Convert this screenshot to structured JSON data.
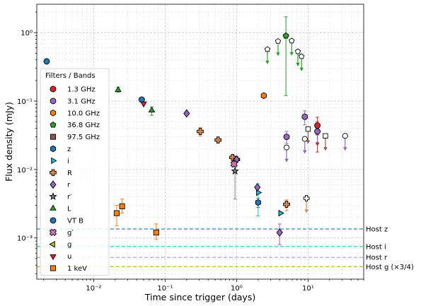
{
  "chart_data": {
    "type": "scatter",
    "xlabel": "Time since trigger (days)",
    "ylabel": "Flux density (mJy)",
    "xscale": "log",
    "yscale": "log",
    "xlim": [
      0.0016,
      60
    ],
    "ylim": [
      0.00025,
      2.6
    ],
    "grid": "major and minor, dashed",
    "x_ticks": [
      {
        "value": 0.01,
        "label": "10⁻²"
      },
      {
        "value": 0.1,
        "label": "10⁻¹"
      },
      {
        "value": 1,
        "label": "10⁰"
      },
      {
        "value": 10,
        "label": "10¹"
      }
    ],
    "y_ticks": [
      {
        "value": 0.001,
        "label": "10⁻³"
      },
      {
        "value": 0.01,
        "label": "10⁻²"
      },
      {
        "value": 0.1,
        "label": "10⁻¹"
      },
      {
        "value": 1,
        "label": "10⁰"
      }
    ],
    "legend": {
      "title": "Filters / Bands",
      "placement": "left",
      "entries": [
        {
          "label": "1.3 GHz",
          "marker": "circle",
          "color": "#d62728"
        },
        {
          "label": "3.1 GHz",
          "marker": "circle",
          "color": "#9467bd"
        },
        {
          "label": "10.0 GHz",
          "marker": "hexagon",
          "color": "#ff7f0e"
        },
        {
          "label": "36.8 GHz",
          "marker": "pentagon",
          "color": "#2ca02c"
        },
        {
          "label": "97.5 GHz",
          "marker": "square",
          "color": "#8c564b"
        },
        {
          "label": "z",
          "marker": "hexagon",
          "color": "#1f77b4"
        },
        {
          "label": "i",
          "marker": "triangle-right",
          "color": "#17becf"
        },
        {
          "label": "R",
          "marker": "plus",
          "color": "#d98a4e"
        },
        {
          "label": "r",
          "marker": "diamond",
          "color": "#9467bd"
        },
        {
          "label": "r′",
          "marker": "star",
          "color": "#7f7f7f"
        },
        {
          "label": "L",
          "marker": "triangle-up",
          "color": "#2ca02c"
        },
        {
          "label": "VT B",
          "marker": "circle",
          "color": "#1f77b4"
        },
        {
          "label": "g′",
          "marker": "x",
          "color": "#e377c2"
        },
        {
          "label": "g",
          "marker": "triangle-left",
          "color": "#bcbd22"
        },
        {
          "label": "u",
          "marker": "triangle-down",
          "color": "#d62728"
        },
        {
          "label": "1 keV",
          "marker": "square",
          "color": "#ff7f0e"
        }
      ]
    },
    "host_lines": [
      {
        "label": "Host z",
        "y": 0.00135,
        "color": "#1f77b4"
      },
      {
        "label": "Host i",
        "y": 0.00075,
        "color": "#17becf"
      },
      {
        "label": "Host r",
        "y": 0.00052,
        "color": "#b19cd9"
      },
      {
        "label": "Host g (×3/4)",
        "y": 0.00038,
        "color": "#bcbd22"
      }
    ],
    "series": [
      {
        "band": "1.3 GHz",
        "marker": "circle",
        "color": "#d62728",
        "points": [
          {
            "x": 13.5,
            "y": 0.044,
            "yerr": [
              0.032,
              0.058
            ]
          },
          {
            "x": 13.5,
            "y": 0.036,
            "yerr": [
              0.018,
              0.05
            ],
            "upper_limit": true
          }
        ]
      },
      {
        "band": "3.1 GHz",
        "marker": "circle",
        "color": "#9467bd",
        "points": [
          {
            "x": 5.0,
            "y": 0.03,
            "yerr": [
              0.024,
              0.036
            ]
          },
          {
            "x": 9.0,
            "y": 0.059,
            "yerr": [
              0.045,
              0.072
            ]
          },
          {
            "x": 13.5,
            "y": 0.036,
            "yerr": [
              0.025,
              0.047
            ]
          },
          {
            "x": 33.0,
            "y": 0.031,
            "upper_limit": true
          },
          {
            "x": 5.0,
            "y": 0.021,
            "upper_limit": true
          },
          {
            "x": 9.0,
            "y": 0.028,
            "upper_limit": true
          }
        ]
      },
      {
        "band": "10.0 GHz",
        "marker": "hexagon",
        "color": "#ff7f0e",
        "points": [
          {
            "x": 2.4,
            "y": 0.12
          }
        ]
      },
      {
        "band": "36.8 GHz",
        "marker": "pentagon",
        "color": "#2ca02c",
        "points": [
          {
            "x": 4.9,
            "y": 0.9,
            "yerr": [
              0.12,
              1.7
            ]
          },
          {
            "x": 2.7,
            "y": 0.57,
            "upper_limit": true
          },
          {
            "x": 3.8,
            "y": 0.75,
            "upper_limit": true
          },
          {
            "x": 5.9,
            "y": 0.76,
            "upper_limit": true
          },
          {
            "x": 7.2,
            "y": 0.53,
            "upper_limit": true
          },
          {
            "x": 8.1,
            "y": 0.45,
            "upper_limit": true
          }
        ]
      },
      {
        "band": "97.5 GHz",
        "marker": "square",
        "color": "#8c564b",
        "points": [
          {
            "x": 10.0,
            "y": 0.039,
            "upper_limit": true
          },
          {
            "x": 17.5,
            "y": 0.031,
            "upper_limit": true
          }
        ]
      },
      {
        "band": "z",
        "marker": "hexagon",
        "color": "#1f77b4",
        "points": [
          {
            "x": 2.0,
            "y": 0.0033,
            "yerr": [
              0.0028,
              0.0038
            ]
          }
        ]
      },
      {
        "band": "i",
        "marker": "triangle-right",
        "color": "#17becf",
        "points": [
          {
            "x": 2.0,
            "y": 0.0046,
            "yerr": [
              0.0021,
              0.0062
            ]
          },
          {
            "x": 4.1,
            "y": 0.0023
          }
        ]
      },
      {
        "band": "R",
        "marker": "plus",
        "color": "#d98a4e",
        "points": [
          {
            "x": 0.31,
            "y": 0.036,
            "yerr": [
              0.031,
              0.041
            ]
          },
          {
            "x": 0.55,
            "y": 0.027
          },
          {
            "x": 0.88,
            "y": 0.015
          },
          {
            "x": 1.0,
            "y": 0.014
          },
          {
            "x": 5.0,
            "y": 0.0031,
            "yerr": [
              0.0025,
              0.0036
            ]
          },
          {
            "x": 9.5,
            "y": 0.0038,
            "upper_limit": true
          }
        ]
      },
      {
        "band": "r",
        "marker": "diamond",
        "color": "#9467bd",
        "points": [
          {
            "x": 0.2,
            "y": 0.066
          },
          {
            "x": 1.0,
            "y": 0.014
          },
          {
            "x": 1.95,
            "y": 0.0055
          },
          {
            "x": 4.0,
            "y": 0.0012,
            "yerr": [
              0.0008,
              0.0016
            ]
          }
        ]
      },
      {
        "band": "r′",
        "marker": "star",
        "color": "#7f7f7f",
        "points": [
          {
            "x": 0.95,
            "y": 0.0095,
            "yerr": [
              0.0037,
              0.011
            ]
          }
        ]
      },
      {
        "band": "L",
        "marker": "triangle-up",
        "color": "#2ca02c",
        "points": [
          {
            "x": 0.022,
            "y": 0.145,
            "yerr": [
              0.135,
              0.16
            ]
          },
          {
            "x": 0.065,
            "y": 0.073,
            "yerr": [
              0.062,
              0.082
            ]
          }
        ]
      },
      {
        "band": "VT B",
        "marker": "circle",
        "color": "#1f77b4",
        "points": [
          {
            "x": 0.0022,
            "y": 0.38
          },
          {
            "x": 0.047,
            "y": 0.105
          }
        ]
      },
      {
        "band": "g′",
        "marker": "x",
        "color": "#e377c2",
        "points": [
          {
            "x": 0.92,
            "y": 0.012
          }
        ]
      },
      {
        "band": "g",
        "marker": "triangle-left",
        "color": "#bcbd22",
        "points": []
      },
      {
        "band": "u",
        "marker": "triangle-down",
        "color": "#d62728",
        "points": [
          {
            "x": 0.05,
            "y": 0.092
          }
        ]
      },
      {
        "band": "1 keV",
        "marker": "square",
        "color": "#ff7f0e",
        "points": [
          {
            "x": 0.021,
            "y": 0.0023,
            "yerr": [
              0.0015,
              0.003
            ]
          },
          {
            "x": 0.025,
            "y": 0.0029,
            "yerr": [
              0.0023,
              0.0037
            ]
          },
          {
            "x": 0.075,
            "y": 0.0012,
            "yerr": [
              0.00095,
              0.0016
            ]
          }
        ]
      }
    ]
  }
}
